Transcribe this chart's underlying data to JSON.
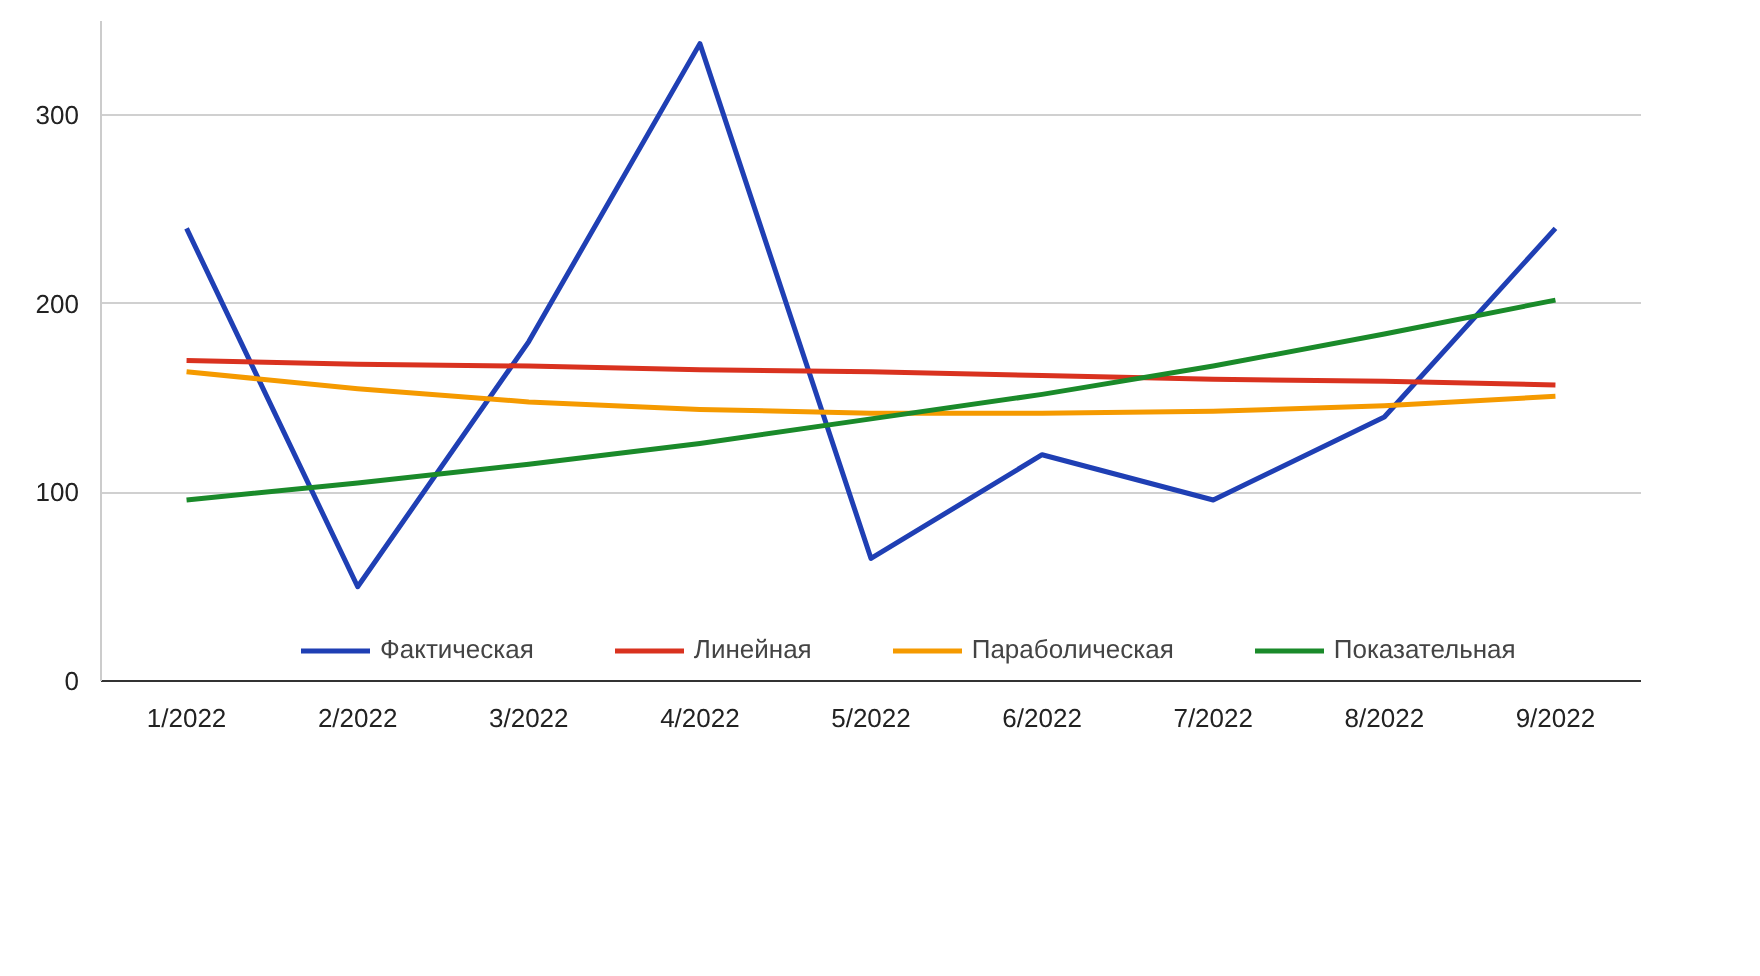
{
  "chart_data": {
    "type": "line",
    "categories": [
      "1/2022",
      "2/2022",
      "3/2022",
      "4/2022",
      "5/2022",
      "6/2022",
      "7/2022",
      "8/2022",
      "9/2022"
    ],
    "series": [
      {
        "name": "Фактическая",
        "color": "#1f3fb4",
        "values": [
          240,
          50,
          180,
          338,
          65,
          120,
          96,
          140,
          240
        ]
      },
      {
        "name": "Линейная",
        "color": "#d9321f",
        "values": [
          170,
          168,
          167,
          165,
          164,
          162,
          160,
          159,
          157
        ]
      },
      {
        "name": "Параболическая",
        "color": "#f59a00",
        "values": [
          164,
          155,
          148,
          144,
          142,
          142,
          143,
          146,
          151
        ]
      },
      {
        "name": "Показательная",
        "color": "#1a8a2a",
        "values": [
          96,
          105,
          115,
          126,
          139,
          152,
          167,
          184,
          202
        ]
      }
    ],
    "ylim": [
      0,
      350
    ],
    "yticks": [
      0,
      100,
      200,
      300
    ],
    "grid": "y",
    "legend": "bottom",
    "marker": "none",
    "line_style": "solid"
  }
}
